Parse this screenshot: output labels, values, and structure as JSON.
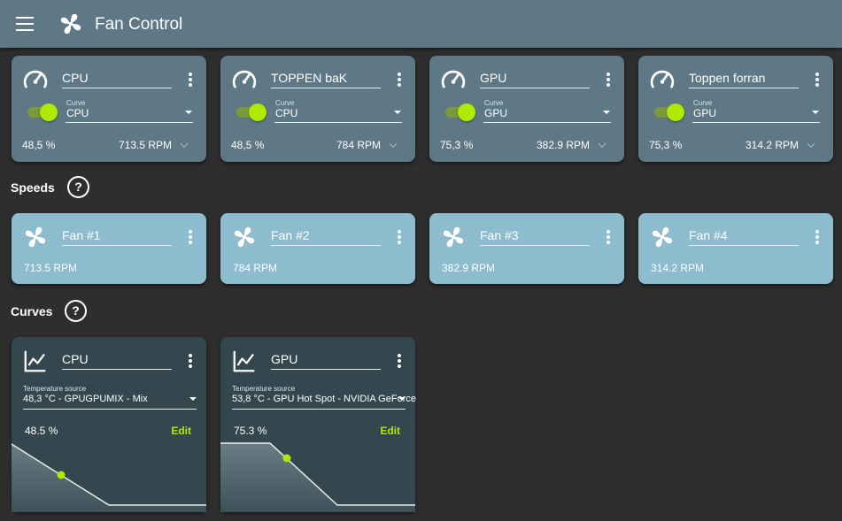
{
  "app": {
    "title": "Fan Control"
  },
  "controls": [
    {
      "name": "CPU",
      "curve_label": "Curve",
      "curve": "CPU",
      "percent": "48,5 %",
      "rpm": "713.5 RPM"
    },
    {
      "name": "TOPPEN baK",
      "curve_label": "Curve",
      "curve": "CPU",
      "percent": "48,5 %",
      "rpm": "784 RPM"
    },
    {
      "name": "GPU",
      "curve_label": "Curve",
      "curve": "GPU",
      "percent": "75,3 %",
      "rpm": "382.9 RPM"
    },
    {
      "name": "Toppen forran",
      "curve_label": "Curve",
      "curve": "GPU",
      "percent": "75,3 %",
      "rpm": "314.2 RPM"
    }
  ],
  "speeds_section": {
    "title": "Speeds",
    "help": "?"
  },
  "speeds": [
    {
      "name": "Fan #1",
      "rpm": "713.5 RPM"
    },
    {
      "name": "Fan #2",
      "rpm": "784 RPM"
    },
    {
      "name": "Fan #3",
      "rpm": "382.9 RPM"
    },
    {
      "name": "Fan #4",
      "rpm": "314.2 RPM"
    }
  ],
  "curves_section": {
    "title": "Curves",
    "help": "?"
  },
  "curves": [
    {
      "name": "CPU",
      "source_label": "Temperature source",
      "source": "48,3 °C - GPUGPUMIX - Mix",
      "percent": "48.5 %",
      "edit": "Edit"
    },
    {
      "name": "GPU",
      "source_label": "Temperature source",
      "source": "53,8 °C - GPU Hot Spot - NVIDIA GeForce",
      "percent": "75.3 %",
      "edit": "Edit"
    }
  ],
  "colors": {
    "accent": "#aeea00",
    "card": "#5f7885",
    "speed_card": "#8dbccf",
    "curve_card": "#34474f",
    "background": "#2e2e2e"
  },
  "icons": {
    "menu": "menu-icon",
    "logo": "fan-icon",
    "gauge": "speedometer-icon",
    "fan": "fan-icon",
    "chart": "line-chart-icon"
  }
}
